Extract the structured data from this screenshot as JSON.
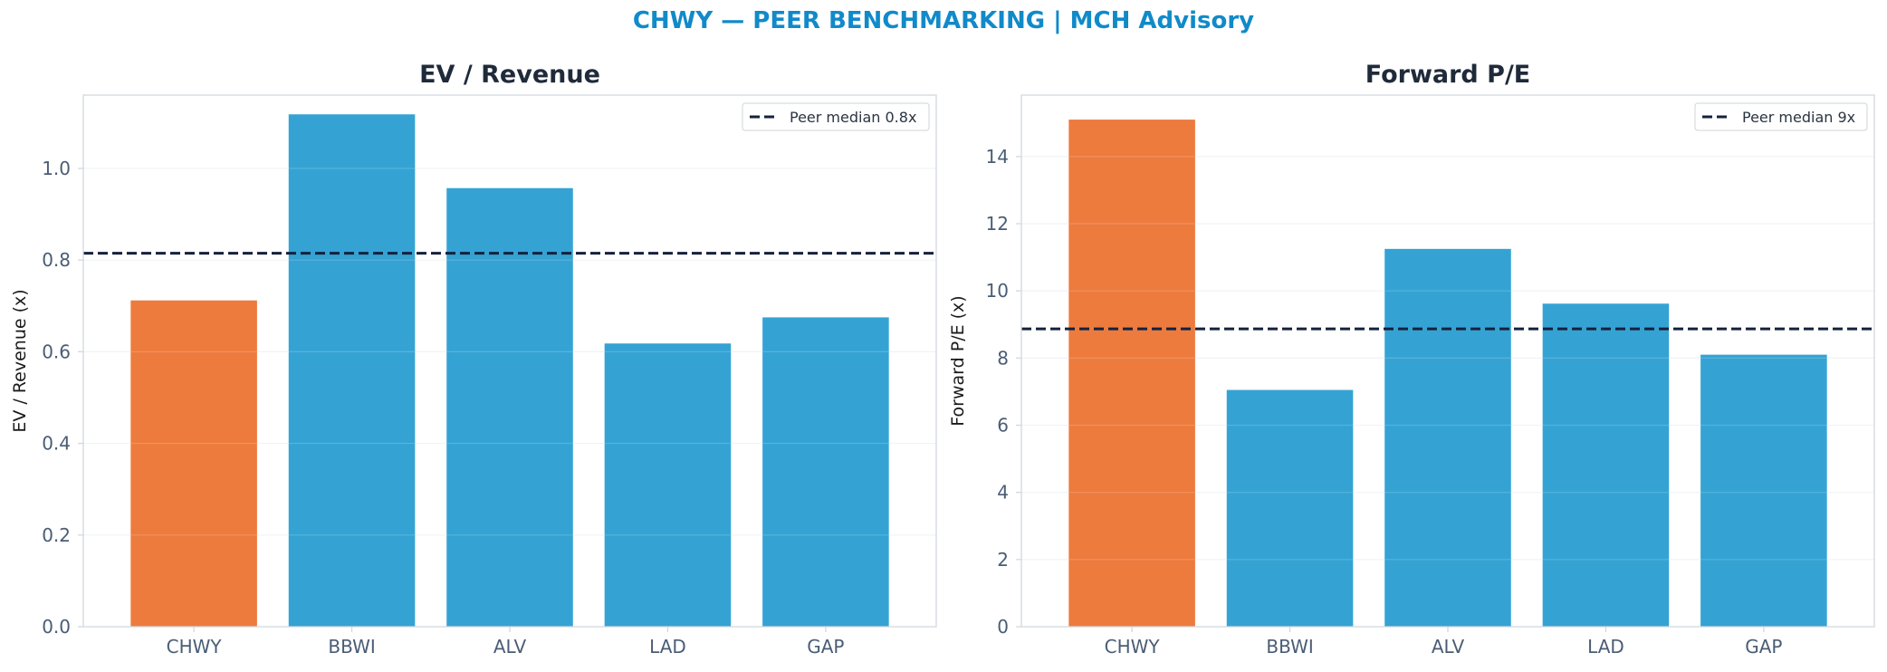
{
  "figure": {
    "suptitle": "CHWY — PEER BENCHMARKING | MCH Advisory",
    "title_color": "#118ac9"
  },
  "colors": {
    "highlight": "#ed7b3e",
    "peer": "#34a3d4",
    "median_line": "#16213e",
    "axis_text": "#4a5d75",
    "title_text": "#1f2a3a",
    "grid": "#eef1f4",
    "spine": "#d3d8de"
  },
  "chart_data": [
    {
      "type": "bar",
      "title": "EV / Revenue",
      "xlabel": "",
      "ylabel": "EV / Revenue (x)",
      "categories": [
        "CHWY",
        "BBWI",
        "ALV",
        "LAD",
        "GAP"
      ],
      "values": [
        0.712,
        1.118,
        0.957,
        0.618,
        0.675
      ],
      "highlight_category": "CHWY",
      "ylim": [
        0,
        1.16
      ],
      "yticks": [
        0.0,
        0.2,
        0.4,
        0.6,
        0.8,
        1.0
      ],
      "ytick_labels": [
        "0.0",
        "0.2",
        "0.4",
        "0.6",
        "0.8",
        "1.0"
      ],
      "reference_line": {
        "value": 0.815,
        "label": "Peer median 0.8x",
        "style": "dashed"
      },
      "legend": {
        "position": "top-right",
        "entries": [
          "Peer median 0.8x"
        ]
      },
      "grid": true
    },
    {
      "type": "bar",
      "title": "Forward P/E",
      "xlabel": "",
      "ylabel": "Forward P/E (x)",
      "categories": [
        "CHWY",
        "BBWI",
        "ALV",
        "LAD",
        "GAP"
      ],
      "values": [
        15.1,
        7.05,
        11.25,
        9.62,
        8.1
      ],
      "highlight_category": "CHWY",
      "ylim": [
        0,
        15.83
      ],
      "yticks": [
        0,
        2,
        4,
        6,
        8,
        10,
        12,
        14
      ],
      "ytick_labels": [
        "0",
        "2",
        "4",
        "6",
        "8",
        "10",
        "12",
        "14"
      ],
      "reference_line": {
        "value": 8.87,
        "label": "Peer median 9x",
        "style": "dashed"
      },
      "legend": {
        "position": "top-right",
        "entries": [
          "Peer median 9x"
        ]
      },
      "grid": true
    }
  ]
}
